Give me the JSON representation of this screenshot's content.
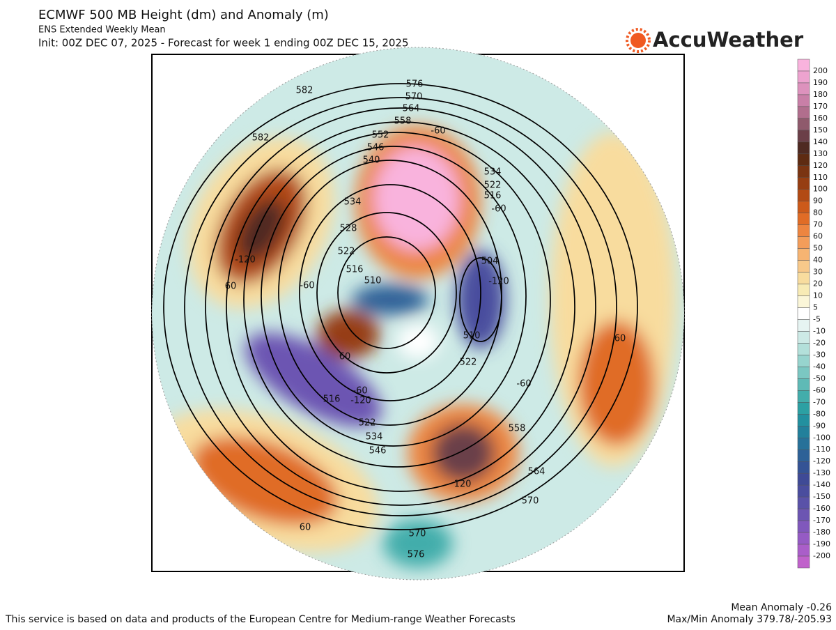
{
  "header": {
    "title": "ECMWF 500 MB Height (dm) and Anomaly (m)",
    "subtitle": "ENS Extended Weekly Mean",
    "init": "Init: 00Z DEC 07, 2025 - Forecast for week 1 ending 00Z DEC 15, 2025",
    "logo": "AccuWeather"
  },
  "colorbar": {
    "labels": [
      200,
      190,
      180,
      170,
      160,
      150,
      140,
      130,
      120,
      110,
      100,
      90,
      80,
      70,
      60,
      50,
      40,
      30,
      20,
      10,
      5,
      -5,
      -10,
      -20,
      -30,
      -40,
      -50,
      -60,
      -70,
      -80,
      -90,
      -100,
      -110,
      -120,
      -130,
      -140,
      -150,
      -160,
      -170,
      -180,
      -190,
      -200
    ],
    "colors": [
      "#f9b3dd",
      "#eda3cf",
      "#dd92bd",
      "#c97fa7",
      "#b16e8d",
      "#8f5a6c",
      "#6b3f48",
      "#4f2a22",
      "#5e2b12",
      "#7a3412",
      "#963e12",
      "#b24a14",
      "#cc5a1a",
      "#e06c26",
      "#ed8540",
      "#f39d5a",
      "#f6b472",
      "#f8c98a",
      "#f8dc9e",
      "#f8ebb5",
      "#fbf6d8",
      "#ffffff",
      "#e6f4f2",
      "#cdeae6",
      "#b3e0da",
      "#97d4ce",
      "#7bc7c2",
      "#5fbab6",
      "#43adab",
      "#2ca0a3",
      "#22909f",
      "#22809b",
      "#277199",
      "#2d6197",
      "#345395",
      "#3f4a96",
      "#4a4d9e",
      "#5a52a8",
      "#6c55b2",
      "#8058bc",
      "#955bc4",
      "#aa5ec9",
      "#c062cb"
    ]
  },
  "map": {
    "contour_labels": [
      "576",
      "570",
      "564",
      "558",
      "552",
      "546",
      "540",
      "534",
      "528",
      "522",
      "516",
      "510",
      "582",
      "582",
      "-60",
      "534",
      "522",
      "516",
      "-60",
      "504",
      "-120",
      "510",
      "522",
      "-60",
      "558",
      "564",
      "570",
      "570",
      "576",
      "-120",
      "60",
      "-60",
      "60",
      "-60",
      "-120",
      "516",
      "522",
      "534",
      "546",
      "60",
      "60",
      "120"
    ]
  },
  "footer": {
    "credit": "This service is based on data and products of the European Centre for Medium-range Weather Forecasts",
    "mean": "Mean Anomaly -0.26",
    "maxmin": "Max/Min Anomaly 379.78/-205.93"
  }
}
